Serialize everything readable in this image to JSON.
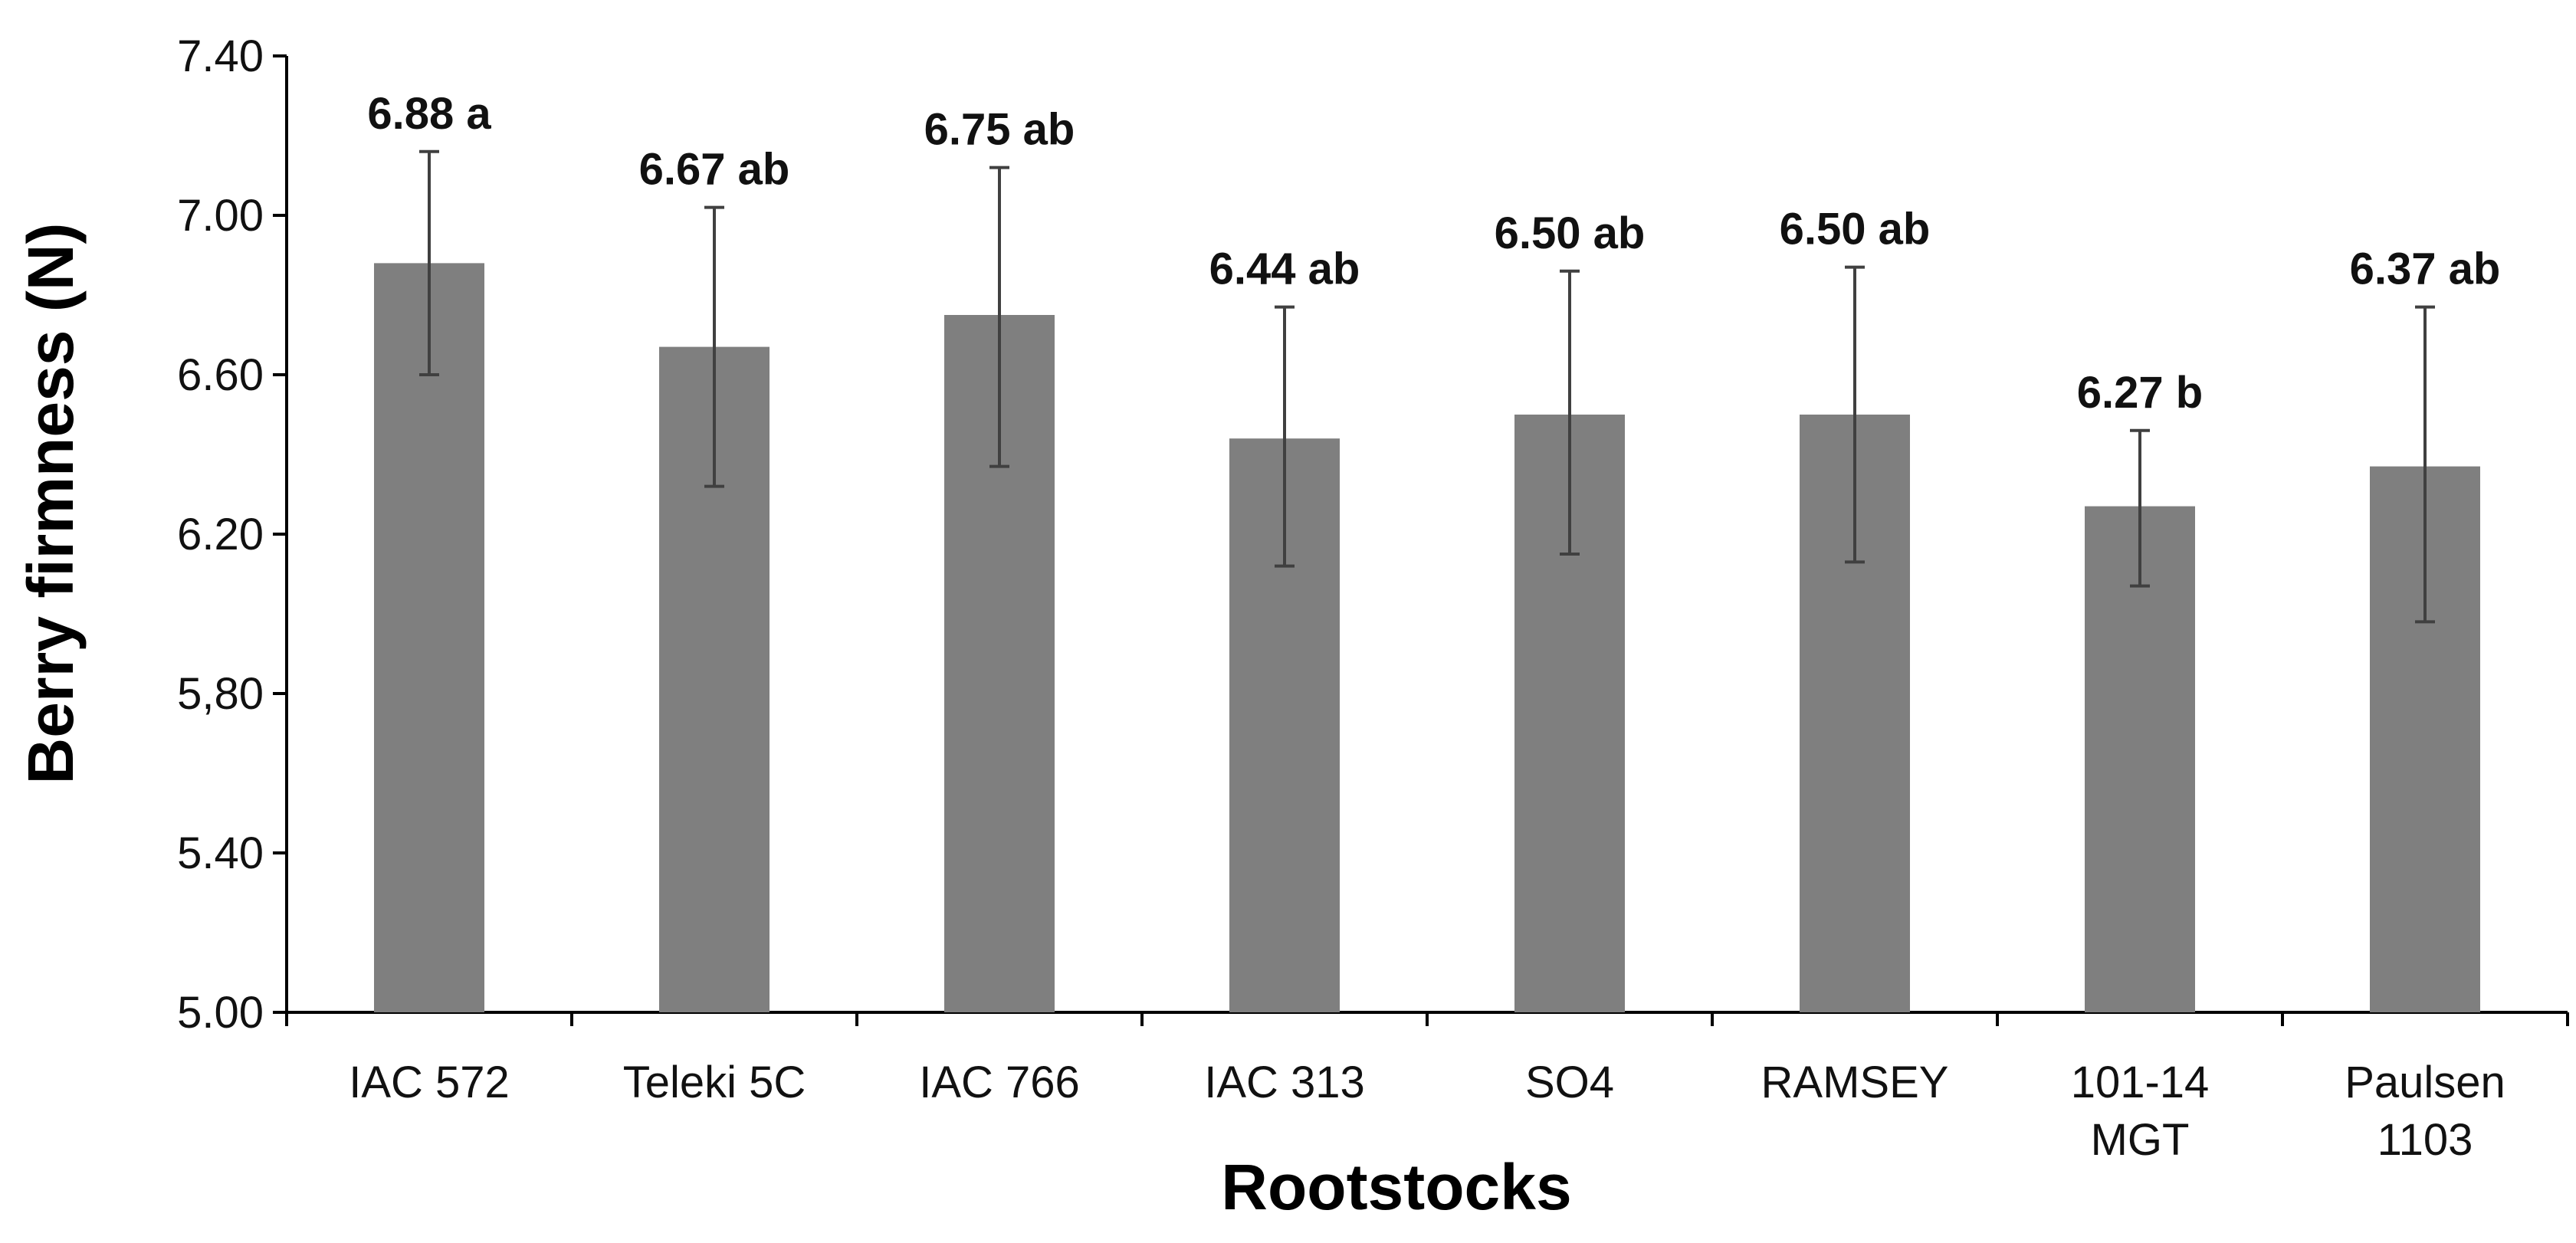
{
  "chart_data": {
    "type": "bar",
    "title": "",
    "xlabel": "Rootstocks",
    "ylabel": "Berry firmness (N)",
    "ylim": [
      5.0,
      7.4
    ],
    "yticks": [
      5.0,
      5.4,
      5.8,
      6.2,
      6.6,
      7.0,
      7.4
    ],
    "ytick_labels": [
      "5.00",
      "5.40",
      "5,80",
      "6.20",
      "6.60",
      "7.00",
      "7.40"
    ],
    "grid": false,
    "categories": [
      [
        "IAC 572"
      ],
      [
        "Teleki 5C"
      ],
      [
        "IAC 766"
      ],
      [
        "IAC 313"
      ],
      [
        "SO4"
      ],
      [
        "RAMSEY"
      ],
      [
        "101-14",
        "MGT"
      ],
      [
        "Paulsen",
        "1103"
      ]
    ],
    "values": [
      6.88,
      6.67,
      6.75,
      6.44,
      6.5,
      6.5,
      6.27,
      6.37
    ],
    "error_low": [
      6.6,
      6.32,
      6.37,
      6.12,
      6.15,
      6.13,
      6.07,
      5.98
    ],
    "error_high": [
      7.16,
      7.02,
      7.12,
      6.77,
      6.86,
      6.87,
      6.46,
      6.77
    ],
    "data_labels": [
      "6.88 a",
      "6.67 ab",
      "6.75 ab",
      "6.44 ab",
      "6.50 ab",
      "6.50 ab",
      "6.27 b",
      "6.37 ab"
    ],
    "colors": {
      "bar": "#7f7f7f",
      "axis": "#000000",
      "error_bar": "#404040"
    }
  }
}
